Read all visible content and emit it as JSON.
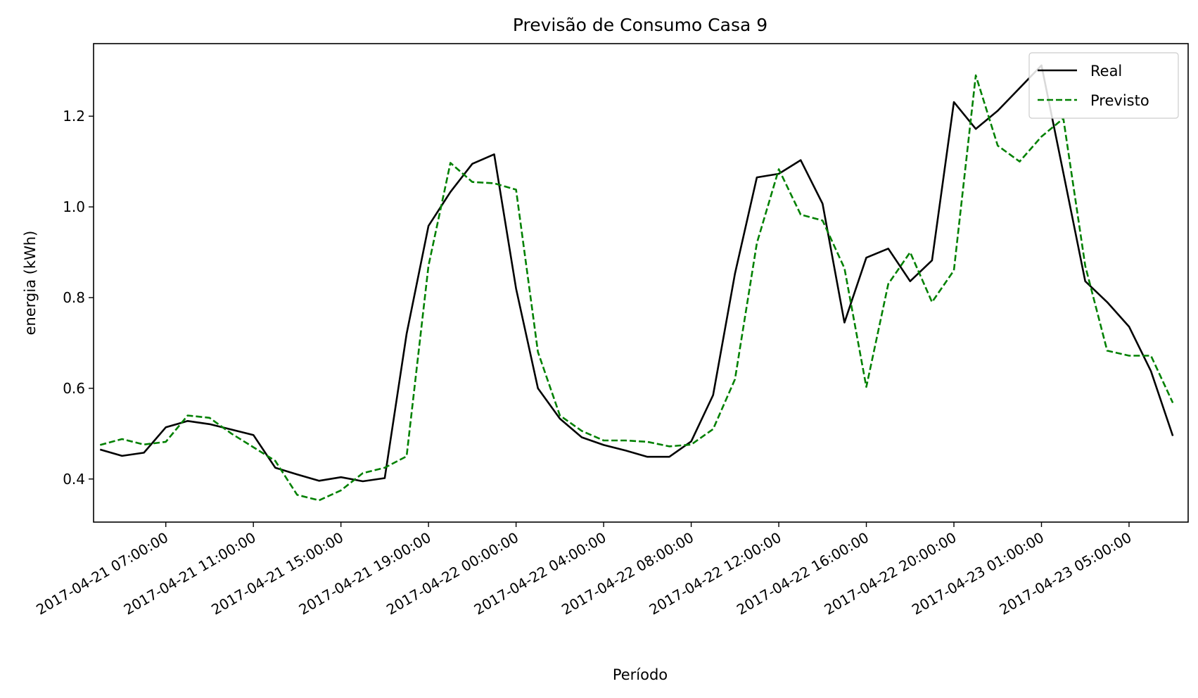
{
  "chart_data": {
    "type": "line",
    "title": "Previsão de Consumo Casa 9",
    "xlabel": "Período",
    "ylabel": "energia (kWh)",
    "ylim": [
      0.305,
      1.36
    ],
    "yticks": [
      0.4,
      0.6,
      0.8,
      1.0,
      1.2
    ],
    "ytick_labels": [
      "0.4",
      "0.6",
      "0.8",
      "1.0",
      "1.2"
    ],
    "xticks": [
      {
        "index": 3,
        "label": "2017-04-21 07:00:00"
      },
      {
        "index": 7,
        "label": "2017-04-21 11:00:00"
      },
      {
        "index": 11,
        "label": "2017-04-21 15:00:00"
      },
      {
        "index": 15,
        "label": "2017-04-21 19:00:00"
      },
      {
        "index": 19,
        "label": "2017-04-22 00:00:00"
      },
      {
        "index": 23,
        "label": "2017-04-22 04:00:00"
      },
      {
        "index": 27,
        "label": "2017-04-22 08:00:00"
      },
      {
        "index": 31,
        "label": "2017-04-22 12:00:00"
      },
      {
        "index": 35,
        "label": "2017-04-22 16:00:00"
      },
      {
        "index": 39,
        "label": "2017-04-22 20:00:00"
      },
      {
        "index": 43,
        "label": "2017-04-23 01:00:00"
      },
      {
        "index": 47,
        "label": "2017-04-23 05:00:00"
      }
    ],
    "xrange": [
      -0.3,
      49.7
    ],
    "grid": false,
    "legend_position": "top-right",
    "series": [
      {
        "name": "Real",
        "color": "#000000",
        "dash": "solid",
        "values": [
          0.465,
          0.451,
          0.458,
          0.514,
          0.528,
          0.521,
          0.509,
          0.497,
          0.425,
          0.41,
          0.396,
          0.404,
          0.395,
          0.402,
          0.72,
          0.958,
          1.033,
          1.095,
          1.116,
          0.82,
          0.6,
          0.533,
          0.492,
          0.475,
          0.463,
          0.449,
          0.449,
          0.483,
          0.585,
          0.853,
          1.065,
          1.073,
          1.103,
          1.007,
          0.745,
          0.888,
          0.908,
          0.836,
          0.882,
          1.231,
          1.172,
          1.212,
          1.262,
          1.312,
          1.075,
          0.836,
          0.79,
          0.736,
          0.638,
          0.495
        ]
      },
      {
        "name": "Previsto",
        "color": "#008000",
        "dash": "dashed",
        "values": [
          0.475,
          0.488,
          0.476,
          0.482,
          0.54,
          0.535,
          0.5,
          0.47,
          0.44,
          0.365,
          0.353,
          0.375,
          0.413,
          0.425,
          0.45,
          0.87,
          1.097,
          1.055,
          1.052,
          1.038,
          0.68,
          0.54,
          0.506,
          0.485,
          0.485,
          0.482,
          0.472,
          0.476,
          0.51,
          0.62,
          0.92,
          1.083,
          0.983,
          0.97,
          0.865,
          0.603,
          0.83,
          0.9,
          0.79,
          0.86,
          1.29,
          1.135,
          1.1,
          1.155,
          1.195,
          0.87,
          0.683,
          0.672,
          0.672,
          0.568
        ]
      }
    ]
  }
}
